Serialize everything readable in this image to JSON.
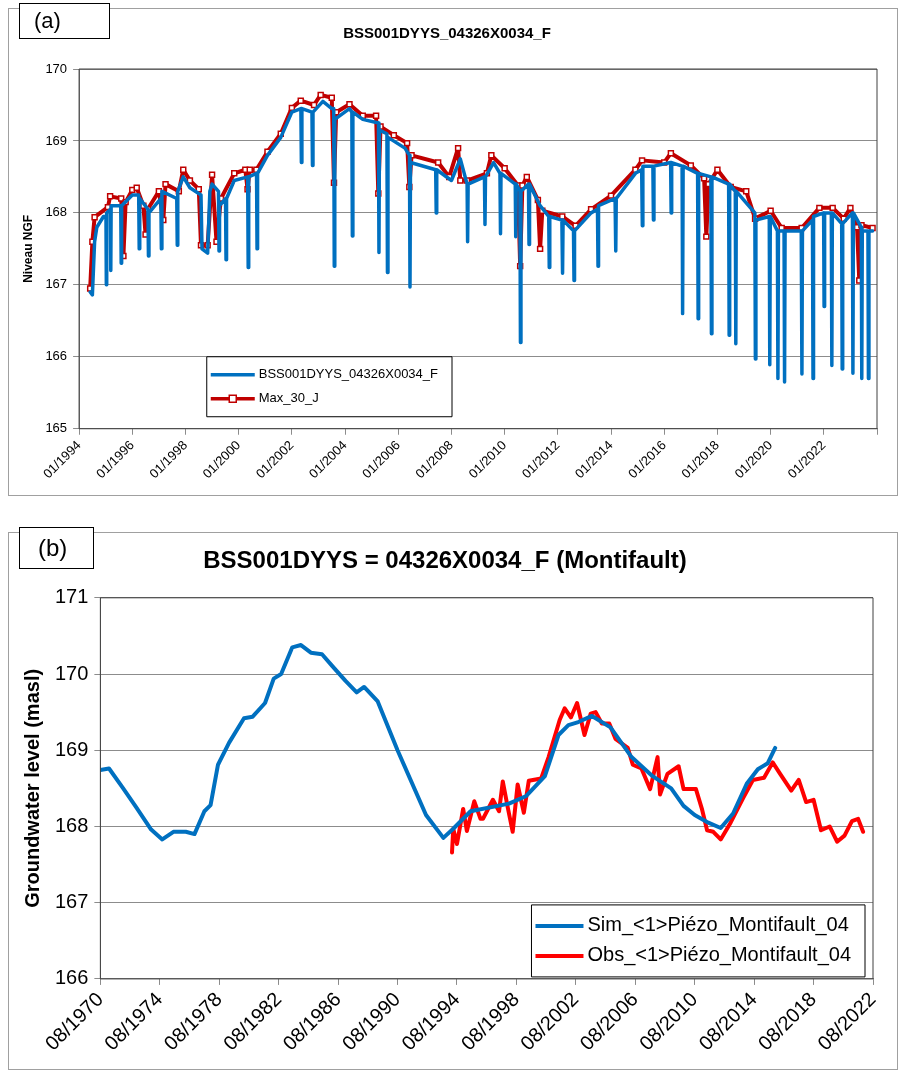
{
  "chart_data": [
    {
      "type": "line",
      "title": "BSS001DYYS_04326X0034_F",
      "ylabel": "Niveau NGF",
      "annotations": [
        "(a)"
      ],
      "xlim": [
        "1994-01",
        "2024-01"
      ],
      "ylim": [
        165,
        170
      ],
      "yticks": [
        165,
        166,
        167,
        168,
        169,
        170
      ],
      "xticks": [
        {
          "value": "1994-01",
          "label": "01/1994"
        },
        {
          "value": "1996-01",
          "label": "01/1996"
        },
        {
          "value": "1998-01",
          "label": "01/1998"
        },
        {
          "value": "2000-01",
          "label": "01/2000"
        },
        {
          "value": "2002-01",
          "label": "01/2002"
        },
        {
          "value": "2004-01",
          "label": "01/2004"
        },
        {
          "value": "2006-01",
          "label": "01/2006"
        },
        {
          "value": "2008-01",
          "label": "01/2008"
        },
        {
          "value": "2010-01",
          "label": "01/2010"
        },
        {
          "value": "2012-01",
          "label": "01/2012"
        },
        {
          "value": "2014-01",
          "label": "01/2014"
        },
        {
          "value": "2016-01",
          "label": "01/2016"
        },
        {
          "value": "2018-01",
          "label": "01/2018"
        },
        {
          "value": "2020-01",
          "label": "01/2020"
        },
        {
          "value": "2022-01",
          "label": "01/2022"
        },
        {
          "value": "2024-01",
          "label": null
        }
      ],
      "grid": "y",
      "legend": "bottom left",
      "series": [
        {
          "name": "BSS001DYYS_04326X0034_F",
          "color": "#0070c0",
          "marker": "none",
          "x": [
            "1994-06",
            "1994-07",
            "1994-08",
            "1994-09",
            "1994-12",
            "1995-01-05",
            "1995-01-10",
            "1995-01-15",
            "1995-03-05",
            "1995-03-10",
            "1995-03-15",
            "1995-07-25",
            "1995-08-01",
            "1995-08-07",
            "1996-01",
            "1996-03-28",
            "1996-04-05",
            "1996-04-12",
            "1996-08-03",
            "1996-08-10",
            "1996-08-17",
            "1997-01-28",
            "1997-02-05",
            "1997-02-12",
            "1997-09-03",
            "1997-09-10",
            "1997-09-17",
            "1997-12",
            "1998-03",
            "1998-08",
            "1998-08-15",
            "1998-11-01",
            "1998-12-01",
            "1999-01",
            "1999-03-28",
            "1999-04-05",
            "1999-04-12",
            "1999-07-03",
            "1999-07-10",
            "1999-07-17",
            "1999-11",
            "2000-05-03",
            "2000-05-10",
            "2000-05-17",
            "2000-09-03",
            "2000-09-10",
            "2000-09-17",
            "2001-02",
            "2001-08",
            "2002-01",
            "2002-05-03",
            "2002-05-10",
            "2002-05-17",
            "2002-10-03",
            "2002-10-10",
            "2002-10-17",
            "2003-03",
            "2003-07",
            "2003-07-28",
            "2003-08-05",
            "2003-08-12",
            "2004-03",
            "2004-04-03",
            "2004-04-10",
            "2004-04-17",
            "2004-09",
            "2005-04-03",
            "2005-04-10",
            "2005-04-17",
            "2005-07-28",
            "2005-08-05",
            "2005-08-12",
            "2006-04",
            "2006-06-03",
            "2006-06-10",
            "2006-06-17",
            "2007-05-28",
            "2007-06-05",
            "2007-06-12",
            "2008-01",
            "2008-05",
            "2008-08-03",
            "2008-08-10",
            "2008-08-17",
            "2009-03-28",
            "2009-04-05",
            "2009-04-12",
            "2009-08",
            "2009-10-28",
            "2009-11-05",
            "2009-11-12",
            "2010-05-25",
            "2010-06-01",
            "2010-06-08",
            "2010-07-28",
            "2010-08-05",
            "2010-08-12",
            "2010-11-24",
            "2010-12-01",
            "2010-12-08",
            "2011-05",
            "2011-08-28",
            "2011-09-05",
            "2011-09-12",
            "2012-02-26",
            "2012-03-05",
            "2012-03-12",
            "2012-08-03",
            "2012-08-10",
            "2012-08-17",
            "2013-04",
            "2013-06-28",
            "2013-07-05",
            "2013-07-12",
            "2014-02-26",
            "2014-03-05",
            "2014-03-12",
            "2014-12",
            "2015-02-26",
            "2015-03-05",
            "2015-03-12",
            "2015-07-28",
            "2015-08-05",
            "2015-08-12",
            "2016-03-28",
            "2016-04-05",
            "2016-04-12",
            "2016-09-03",
            "2016-09-10",
            "2016-09-17",
            "2017-04-03",
            "2017-04-10",
            "2017-04-17",
            "2017-10-03",
            "2017-10-10",
            "2017-10-17",
            "2018-06-03",
            "2018-06-10",
            "2018-06-17",
            "2018-09-03",
            "2018-09-10",
            "2018-09-17",
            "2019-05-28",
            "2019-06-05",
            "2019-06-12",
            "2019-12-13",
            "2019-12-20",
            "2019-12-27",
            "2020-04-03",
            "2020-04-10",
            "2020-04-17",
            "2020-07-03",
            "2020-07-10",
            "2020-07-17",
            "2021-02-26",
            "2021-03-05",
            "2021-03-12",
            "2021-07-28",
            "2021-08-05",
            "2021-08-12",
            "2021-12-29",
            "2022-01-05",
            "2022-01-12",
            "2022-04-13",
            "2022-04-20",
            "2022-04-27",
            "2022-09-03",
            "2022-09-10",
            "2022-09-17",
            "2023-01-29",
            "2023-02-05",
            "2023-02-12",
            "2023-05-29",
            "2023-06-05",
            "2023-06-12",
            "2023-08-29",
            "2023-09-05",
            "2023-09-12",
            "2023-11"
          ],
          "values": [
            166.9,
            166.86,
            167.6,
            167.8,
            167.95,
            167.95,
            167.0,
            168.0,
            168.05,
            167.2,
            168.1,
            168.1,
            167.3,
            168.1,
            168.25,
            168.25,
            167.5,
            168.2,
            168.05,
            167.4,
            168.0,
            168.2,
            167.5,
            168.3,
            168.2,
            167.55,
            168.3,
            168.5,
            168.35,
            168.25,
            167.5,
            167.44,
            168.3,
            168.4,
            168.3,
            167.47,
            168.1,
            168.2,
            167.35,
            168.2,
            168.45,
            168.5,
            167.24,
            168.5,
            168.55,
            167.5,
            168.55,
            168.8,
            169.05,
            169.4,
            169.45,
            168.7,
            169.45,
            169.4,
            168.66,
            169.4,
            169.55,
            169.45,
            169.45,
            167.26,
            169.3,
            169.45,
            169.4,
            167.68,
            169.4,
            169.3,
            169.25,
            167.45,
            169.15,
            169.1,
            167.17,
            169.05,
            168.9,
            168.8,
            166.97,
            168.7,
            168.6,
            168.0,
            168.6,
            168.45,
            168.75,
            168.4,
            167.6,
            168.4,
            168.5,
            167.84,
            168.5,
            168.7,
            168.55,
            167.71,
            168.55,
            168.4,
            167.67,
            168.4,
            168.3,
            166.2,
            168.3,
            168.4,
            167.56,
            168.4,
            168.1,
            167.95,
            167.24,
            167.95,
            167.9,
            167.16,
            167.9,
            167.75,
            167.06,
            167.75,
            168.0,
            168.05,
            167.26,
            168.1,
            168.2,
            167.47,
            168.2,
            168.55,
            168.6,
            167.82,
            168.65,
            168.65,
            167.9,
            168.65,
            168.7,
            168.0,
            168.7,
            168.65,
            166.6,
            168.65,
            168.55,
            166.53,
            168.55,
            168.5,
            166.32,
            168.5,
            168.4,
            166.3,
            168.4,
            168.3,
            166.18,
            168.3,
            168.0,
            165.97,
            167.9,
            167.95,
            165.89,
            167.95,
            167.75,
            165.7,
            167.75,
            167.75,
            165.65,
            167.75,
            167.75,
            165.76,
            167.75,
            167.9,
            165.7,
            167.95,
            168.0,
            166.7,
            168.0,
            168.0,
            165.88,
            168.0,
            167.85,
            165.83,
            167.85,
            168.0,
            165.77,
            168.0,
            167.8,
            165.7,
            167.75,
            167.75,
            165.7,
            167.75,
            167.75
          ]
        },
        {
          "name": "Max_30_J",
          "color": "#c00000",
          "marker": "square",
          "x": [
            "1994-06",
            "1994-07",
            "1994-08",
            "1995-02",
            "1995-03",
            "1995-08",
            "1995-09",
            "1995-10",
            "1996-01",
            "1996-03",
            "1996-06",
            "1996-07",
            "1996-08",
            "1997-01",
            "1997-03",
            "1997-04",
            "1997-10",
            "1997-12",
            "1998-03",
            "1998-07",
            "1998-08",
            "1998-11",
            "1999-01",
            "1999-03",
            "1999-05",
            "1999-11",
            "2000-04",
            "2000-05",
            "2000-06",
            "2000-09",
            "2001-02",
            "2001-08",
            "2002-01",
            "2002-05",
            "2002-11",
            "2003-02",
            "2003-07",
            "2003-08",
            "2003-09",
            "2004-03",
            "2004-09",
            "2005-03",
            "2005-04",
            "2005-05",
            "2005-11",
            "2006-05",
            "2006-06",
            "2006-07",
            "2007-07",
            "2007-12",
            "2008-04",
            "2008-05",
            "2008-08",
            "2009-05",
            "2009-07",
            "2010-01",
            "2010-07",
            "2010-08",
            "2010-09",
            "2010-11",
            "2011-04",
            "2011-05",
            "2011-06",
            "2012-03",
            "2012-09",
            "2013-04",
            "2014-01",
            "2014-12",
            "2015-03",
            "2016-01",
            "2016-04",
            "2017-01",
            "2017-07",
            "2017-08",
            "2017-09",
            "2018-01",
            "2018-07",
            "2019-02",
            "2019-06",
            "2020-01",
            "2020-06",
            "2021-03",
            "2021-11",
            "2022-05",
            "2022-10",
            "2023-01",
            "2023-04",
            "2023-05",
            "2023-06",
            "2023-11"
          ],
          "values": [
            166.95,
            167.6,
            167.94,
            168.08,
            168.23,
            168.2,
            167.4,
            168.15,
            168.32,
            168.35,
            168.1,
            167.7,
            168.05,
            168.3,
            167.9,
            168.4,
            168.3,
            168.6,
            168.45,
            168.33,
            167.55,
            167.55,
            168.53,
            167.6,
            168.2,
            168.55,
            168.6,
            168.33,
            168.6,
            168.6,
            168.85,
            169.1,
            169.46,
            169.56,
            169.5,
            169.64,
            169.6,
            168.42,
            169.4,
            169.51,
            169.35,
            169.35,
            168.27,
            169.2,
            169.08,
            168.97,
            168.36,
            168.8,
            168.7,
            168.5,
            168.9,
            168.45,
            168.45,
            168.55,
            168.8,
            168.62,
            168.38,
            167.26,
            168.38,
            168.5,
            168.18,
            167.5,
            168.03,
            167.95,
            167.82,
            168.05,
            168.24,
            168.6,
            168.73,
            168.7,
            168.83,
            168.66,
            168.48,
            167.67,
            168.4,
            168.6,
            168.36,
            168.3,
            167.92,
            168.03,
            167.79,
            167.79,
            168.07,
            168.07,
            167.92,
            168.07,
            167.8,
            167.06,
            167.83,
            167.79
          ]
        }
      ]
    },
    {
      "type": "line",
      "title": "BSS001DYYS = 04326X0034_F (Montifault)",
      "ylabel": "Groundwater level (masl)",
      "annotations": [
        "(b)"
      ],
      "xlim": [
        "1970-08",
        "2022-08"
      ],
      "ylim": [
        166,
        171
      ],
      "yticks": [
        166,
        167,
        168,
        169,
        170,
        171
      ],
      "xticks": [
        {
          "value": "1970-08",
          "label": "08/1970"
        },
        {
          "value": "1974-08",
          "label": "08/1974"
        },
        {
          "value": "1978-08",
          "label": "08/1978"
        },
        {
          "value": "1982-08",
          "label": "08/1982"
        },
        {
          "value": "1986-08",
          "label": "08/1986"
        },
        {
          "value": "1990-08",
          "label": "08/1990"
        },
        {
          "value": "1994-08",
          "label": "08/1994"
        },
        {
          "value": "1998-08",
          "label": "08/1998"
        },
        {
          "value": "2002-08",
          "label": "08/2002"
        },
        {
          "value": "2006-08",
          "label": "08/2006"
        },
        {
          "value": "2010-08",
          "label": "08/2010"
        },
        {
          "value": "2014-08",
          "label": "08/2014"
        },
        {
          "value": "2018-08",
          "label": "08/2018"
        },
        {
          "value": "2022-08",
          "label": "08/2022"
        }
      ],
      "grid": "y",
      "legend": "bottom right",
      "series": [
        {
          "name": "Sim_<1>Piézo_Montifault_04",
          "color": "#0070c0",
          "marker": "none",
          "x": [
            "1970-08",
            "1971-03",
            "1972-02",
            "1973-01",
            "1974-01",
            "1974-10",
            "1975-07",
            "1976-05",
            "1976-12",
            "1977-08",
            "1978-01",
            "1978-07",
            "1979-04",
            "1980-04",
            "1980-11",
            "1981-09",
            "1982-04",
            "1982-10",
            "1983-07",
            "1984-02",
            "1984-10",
            "1985-07",
            "1986-03",
            "1987-02",
            "1987-11",
            "1988-05",
            "1989-04",
            "1990-08",
            "1992-07",
            "1993-09",
            "1994-05",
            "1995-07",
            "1998-02",
            "1999-04",
            "2000-07",
            "2001-06",
            "2002-02",
            "2002-10",
            "2003-09",
            "2004-12",
            "2006-05",
            "2007-10",
            "2009-01",
            "2009-11",
            "2010-08",
            "2011-07",
            "2012-05",
            "2013-03",
            "2014-02",
            "2014-11",
            "2015-07",
            "2016-01"
          ],
          "values": [
            168.74,
            168.76,
            168.51,
            168.25,
            167.96,
            167.83,
            167.93,
            167.93,
            167.9,
            168.2,
            168.28,
            168.81,
            169.1,
            169.42,
            169.44,
            169.62,
            169.94,
            170.0,
            170.35,
            170.38,
            170.28,
            170.26,
            170.11,
            169.91,
            169.76,
            169.83,
            169.64,
            169.0,
            168.15,
            167.85,
            167.97,
            168.2,
            168.3,
            168.4,
            168.66,
            169.2,
            169.33,
            169.37,
            169.45,
            169.3,
            168.91,
            168.66,
            168.5,
            168.27,
            168.15,
            168.05,
            167.98,
            168.17,
            168.56,
            168.75,
            168.83,
            169.03
          ]
        },
        {
          "name": "Obs_<1>Piézo_Montifault_04",
          "color": "#ff0000",
          "marker": "none",
          "x": [
            "1994-04",
            "1994-05",
            "1994-08",
            "1995-01",
            "1995-04",
            "1995-10",
            "1996-03",
            "1996-05",
            "1997-01",
            "1997-06",
            "1997-09",
            "1998-01",
            "1998-05",
            "1998-09",
            "1999-02",
            "1999-06",
            "2000-04",
            "2000-10",
            "2001-07",
            "2001-11",
            "2002-04",
            "2002-09",
            "2003-03",
            "2003-08",
            "2003-12",
            "2004-05",
            "2004-11",
            "2005-04",
            "2006-02",
            "2006-06",
            "2007-01",
            "2007-08",
            "2008-02",
            "2008-04",
            "2008-10",
            "2009-07",
            "2009-11",
            "2010-09",
            "2011-02",
            "2011-06",
            "2011-11",
            "2012-05",
            "2013-01",
            "2013-11",
            "2014-07",
            "2015-04",
            "2015-11",
            "2016-05",
            "2017-02",
            "2017-08",
            "2018-02",
            "2018-08",
            "2019-02",
            "2019-09",
            "2020-03",
            "2020-09",
            "2021-03",
            "2021-08",
            "2021-12"
          ],
          "values": [
            167.66,
            167.97,
            167.77,
            168.23,
            167.94,
            168.33,
            168.1,
            168.1,
            168.35,
            168.2,
            168.59,
            168.25,
            167.93,
            168.55,
            168.18,
            168.6,
            168.63,
            168.91,
            169.4,
            169.55,
            169.43,
            169.62,
            169.2,
            169.48,
            169.5,
            169.35,
            169.35,
            169.15,
            169.03,
            168.81,
            168.76,
            168.49,
            168.91,
            168.42,
            168.69,
            168.79,
            168.49,
            168.49,
            168.22,
            167.95,
            167.93,
            167.83,
            168.05,
            168.37,
            168.61,
            168.64,
            168.84,
            168.69,
            168.47,
            168.61,
            168.32,
            168.35,
            167.95,
            168.0,
            167.8,
            167.88,
            168.07,
            168.1,
            167.93
          ]
        }
      ]
    }
  ]
}
